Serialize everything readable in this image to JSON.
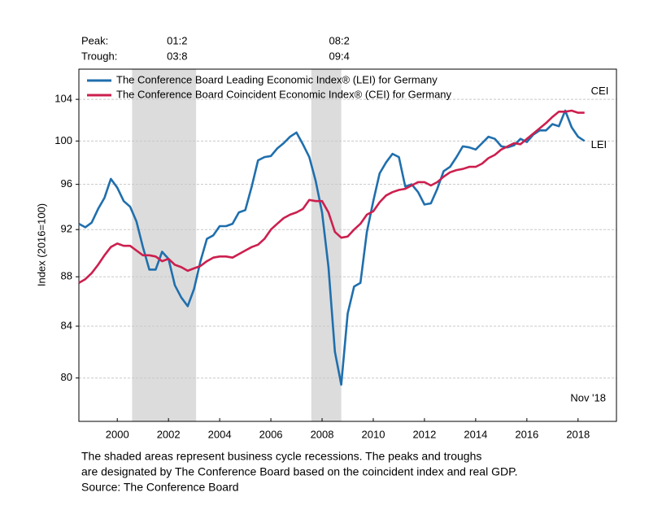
{
  "chart_data": {
    "type": "line",
    "y_label": "Index (2016=100)",
    "log_scale": true,
    "grid": true,
    "legend_position": "upper left",
    "xlim": [
      1999,
      2020
    ],
    "xticks": [
      {
        "value": 2000.5,
        "label": "2000"
      },
      {
        "value": 2002.5,
        "label": "2002"
      },
      {
        "value": 2004.5,
        "label": "2004"
      },
      {
        "value": 2006.5,
        "label": "2006"
      },
      {
        "value": 2008.5,
        "label": "2008"
      },
      {
        "value": 2010.5,
        "label": "2010"
      },
      {
        "value": 2012.5,
        "label": "2012"
      },
      {
        "value": 2014.5,
        "label": "2014"
      },
      {
        "value": 2016.5,
        "label": "2016"
      },
      {
        "value": 2018.5,
        "label": "2018"
      }
    ],
    "ylim": [
      76.8,
      107
    ],
    "yticks": [
      80,
      84,
      88,
      92,
      96,
      100,
      104
    ],
    "peak_label": "Peak:",
    "trough_label": "Trough:",
    "recessions": [
      {
        "start": 2001.08,
        "end": 2003.58,
        "peak": "01:2",
        "trough": "03:8"
      },
      {
        "start": 2008.08,
        "end": 2009.25,
        "peak": "08:2",
        "trough": "09:4"
      }
    ],
    "date_note": "Nov '18",
    "notes": [
      "The shaded areas represent business cycle recessions. The peaks and troughs",
      "are designated by The Conference Board based on the coincident index and real GDP.",
      "Source: The Conference Board"
    ],
    "x": [
      1999,
      1999.25,
      1999.5,
      1999.75,
      2000,
      2000.25,
      2000.5,
      2000.75,
      2001,
      2001.25,
      2001.5,
      2001.75,
      2002,
      2002.25,
      2002.5,
      2002.75,
      2003,
      2003.25,
      2003.5,
      2003.75,
      2004,
      2004.25,
      2004.5,
      2004.75,
      2005,
      2005.25,
      2005.5,
      2005.75,
      2006,
      2006.25,
      2006.5,
      2006.75,
      2007,
      2007.25,
      2007.5,
      2007.75,
      2008,
      2008.25,
      2008.5,
      2008.75,
      2009,
      2009.25,
      2009.5,
      2009.75,
      2010,
      2010.25,
      2010.5,
      2010.75,
      2011,
      2011.25,
      2011.5,
      2011.75,
      2012,
      2012.25,
      2012.5,
      2012.75,
      2013,
      2013.25,
      2013.5,
      2013.75,
      2014,
      2014.25,
      2014.5,
      2014.75,
      2015,
      2015.25,
      2015.5,
      2015.75,
      2016,
      2016.25,
      2016.5,
      2016.75,
      2017,
      2017.25,
      2017.5,
      2017.75,
      2018,
      2018.25,
      2018.5,
      2018.75
    ],
    "series": [
      {
        "name": "The Conference Board Leading Economic Index® (LEI) for Germany",
        "label": "LEI",
        "color": "#1f6fad",
        "values": [
          92.5,
          92.2,
          92.6,
          93.8,
          94.8,
          96.5,
          95.7,
          94.5,
          94.0,
          92.7,
          90.5,
          88.6,
          88.6,
          90.1,
          89.5,
          87.3,
          86.3,
          85.6,
          87.0,
          89.3,
          91.2,
          91.5,
          92.3,
          92.3,
          92.5,
          93.5,
          93.7,
          95.8,
          98.2,
          98.5,
          98.6,
          99.3,
          99.8,
          100.4,
          100.8,
          99.7,
          98.5,
          96.3,
          93.5,
          88.8,
          82.0,
          79.5,
          85.0,
          87.2,
          87.5,
          91.8,
          94.5,
          97.0,
          98.0,
          98.8,
          98.5,
          95.8,
          96.0,
          95.3,
          94.2,
          94.3,
          95.6,
          97.2,
          97.6,
          98.5,
          99.5,
          99.4,
          99.2,
          99.8,
          100.4,
          100.2,
          99.5,
          99.4,
          99.6,
          100.2,
          99.9,
          100.6,
          101.0,
          101.0,
          101.6,
          101.4,
          102.9,
          101.3,
          100.4,
          100.0
        ]
      },
      {
        "name": "The Conference Board Coincident Economic Index® (CEI) for Germany",
        "label": "CEI",
        "color": "#cc1f4e",
        "values": [
          87.5,
          87.8,
          88.3,
          89.0,
          89.8,
          90.5,
          90.8,
          90.6,
          90.6,
          90.2,
          89.8,
          89.8,
          89.7,
          89.3,
          89.5,
          89.0,
          88.8,
          88.5,
          88.7,
          88.9,
          89.3,
          89.6,
          89.7,
          89.7,
          89.6,
          89.9,
          90.2,
          90.5,
          90.7,
          91.2,
          92.0,
          92.5,
          93.0,
          93.3,
          93.5,
          93.8,
          94.6,
          94.5,
          94.5,
          93.5,
          91.8,
          91.3,
          91.4,
          92.0,
          92.5,
          93.3,
          93.6,
          94.4,
          95.0,
          95.3,
          95.5,
          95.6,
          95.9,
          96.2,
          96.2,
          95.9,
          96.2,
          96.7,
          97.1,
          97.3,
          97.4,
          97.6,
          97.6,
          97.9,
          98.4,
          98.7,
          99.2,
          99.5,
          99.8,
          99.7,
          100.2,
          100.7,
          101.2,
          101.7,
          102.3,
          102.8,
          102.8,
          102.9,
          102.7,
          102.7
        ]
      }
    ]
  }
}
